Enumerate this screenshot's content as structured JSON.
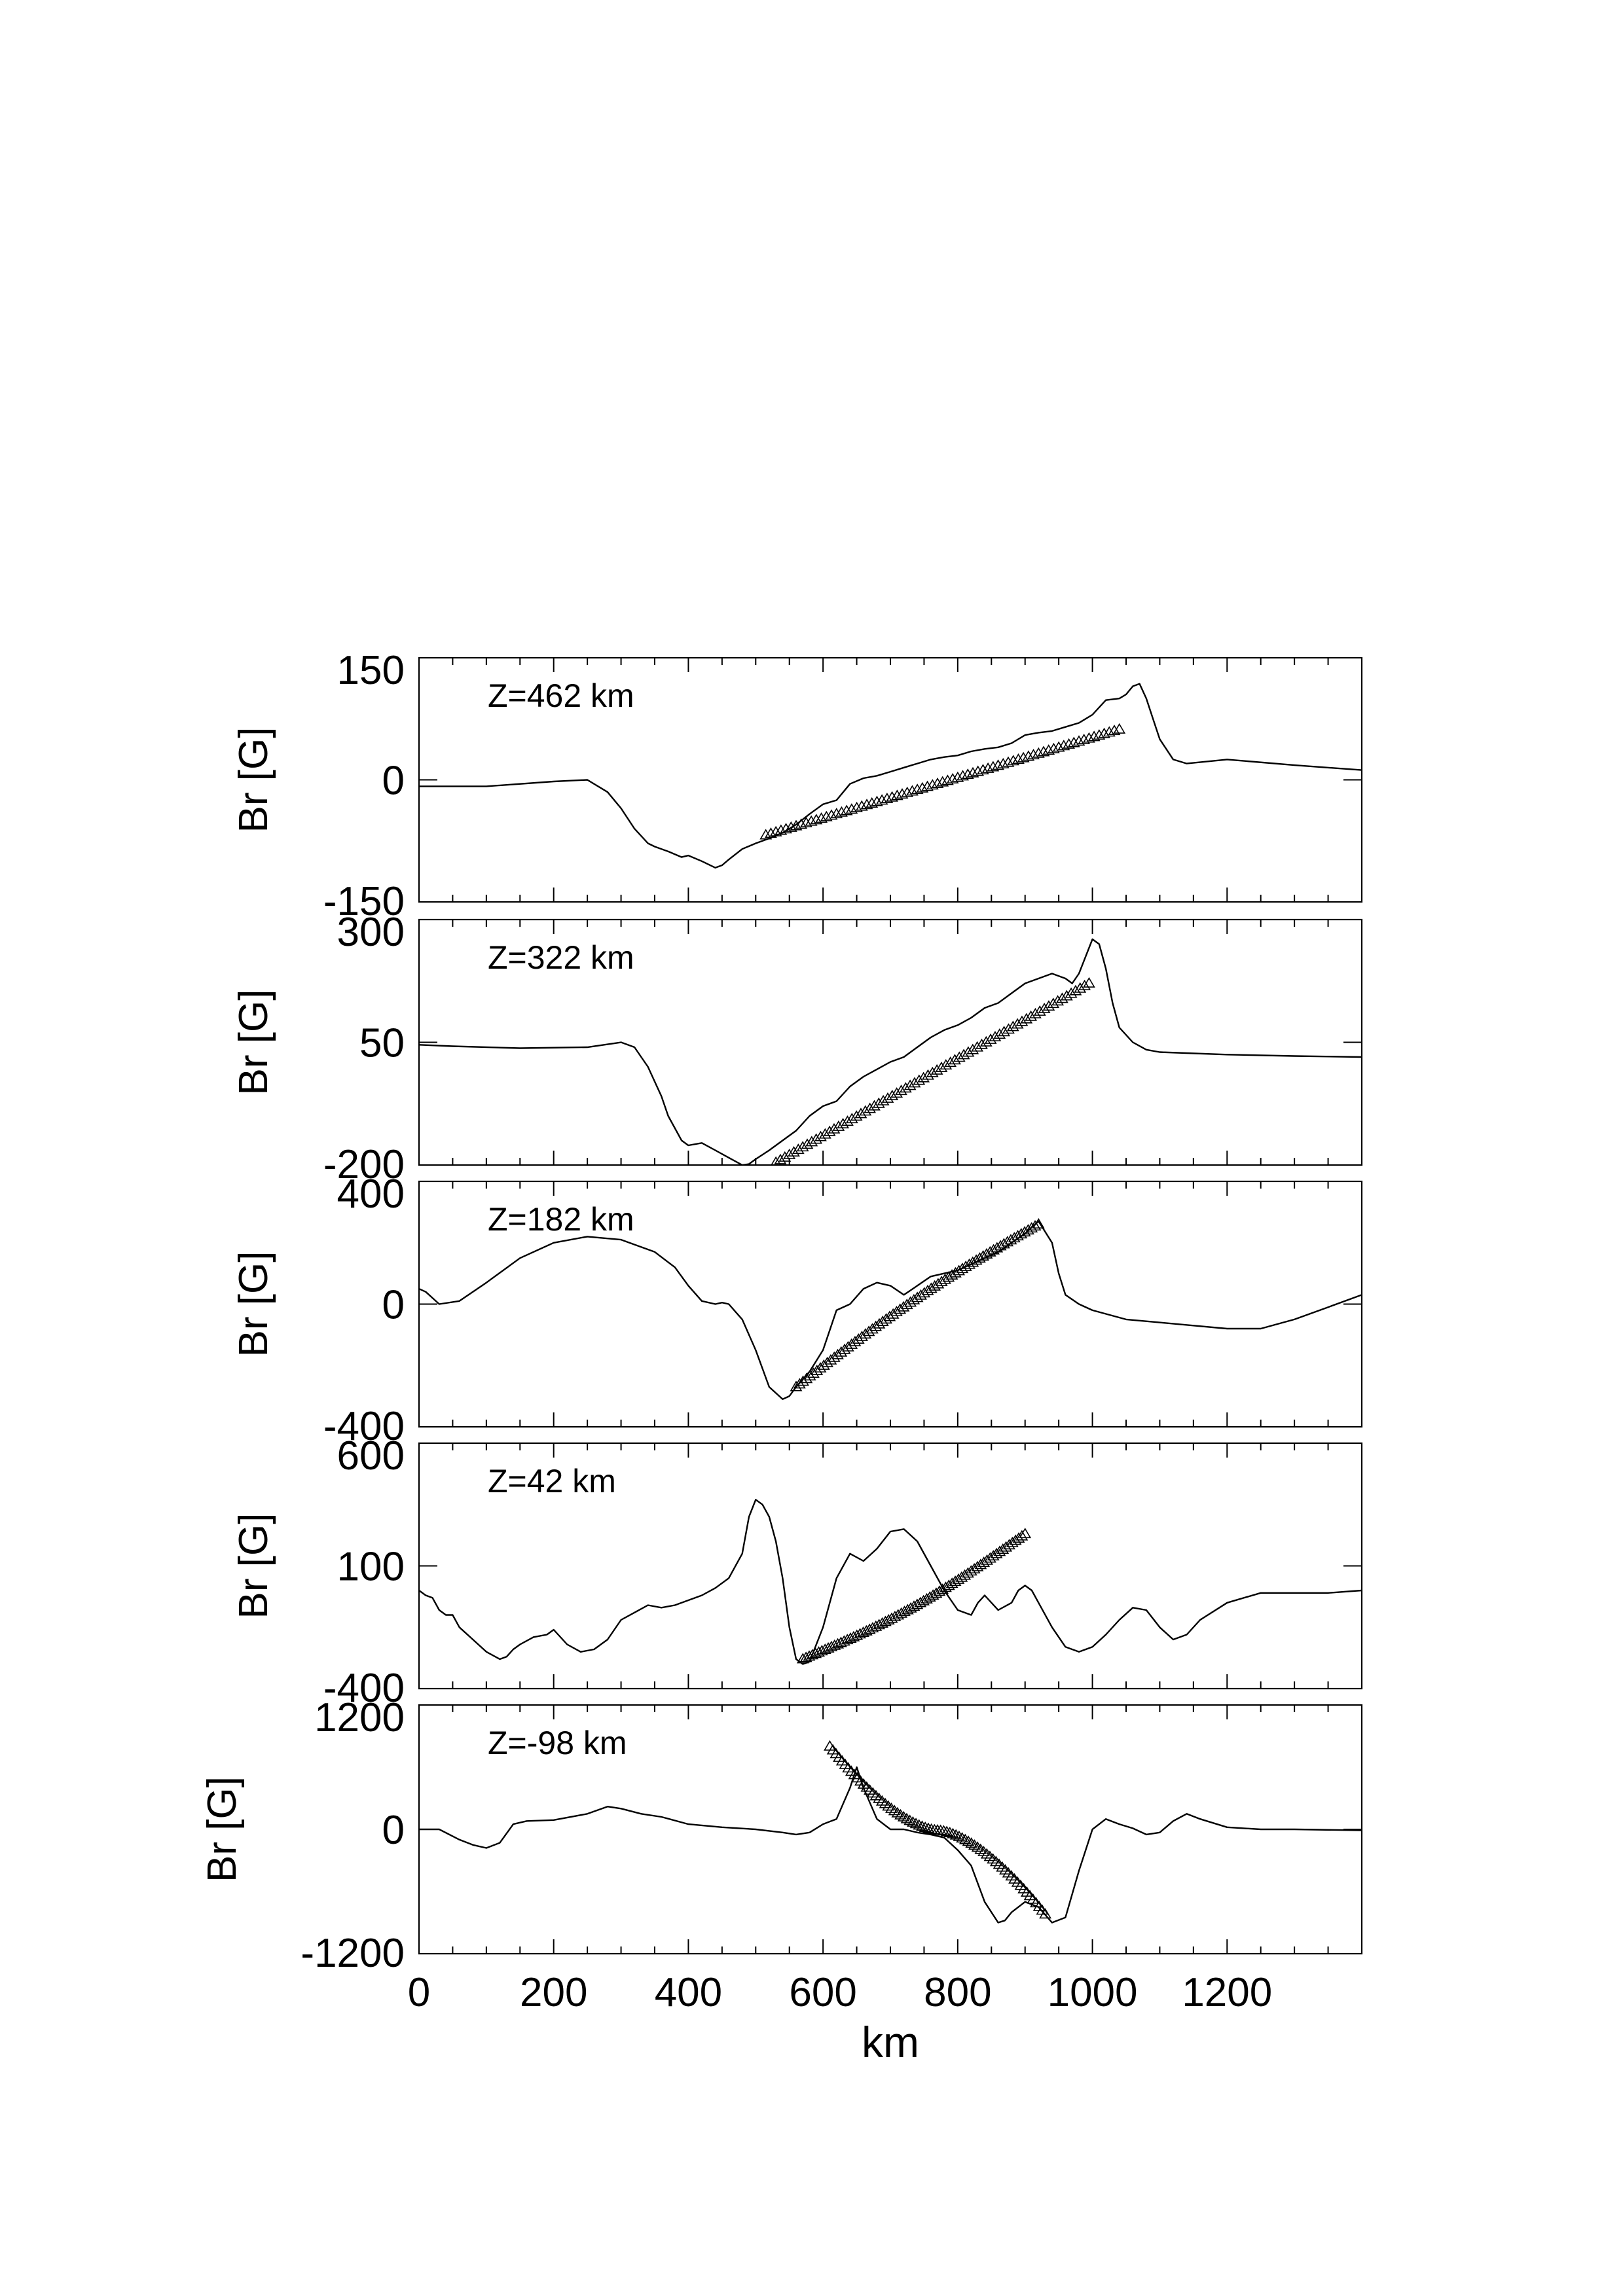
{
  "chart_data": [
    {
      "type": "line",
      "annotation": "Z=462 km",
      "ylabel": "Br [G]",
      "xlabel": "",
      "xlim": [
        0,
        1400
      ],
      "ylim": [
        -150,
        150
      ],
      "yticks": [
        "150",
        "0",
        "-150"
      ],
      "yticks_values": [
        150,
        0,
        -150
      ],
      "series": [
        {
          "style": "line",
          "x": [
            0,
            100,
            200,
            250,
            280,
            300,
            320,
            340,
            350,
            370,
            390,
            400,
            420,
            440,
            450,
            460,
            480,
            500,
            520,
            540,
            560,
            580,
            600,
            620,
            640,
            660,
            680,
            700,
            720,
            740,
            760,
            780,
            800,
            820,
            840,
            860,
            880,
            900,
            920,
            940,
            960,
            980,
            1000,
            1020,
            1040,
            1050,
            1060,
            1070,
            1080,
            1090,
            1100,
            1120,
            1140,
            1200,
            1300,
            1400
          ],
          "y": [
            -8,
            -8,
            -2,
            0,
            -15,
            -35,
            -60,
            -78,
            -82,
            -88,
            -95,
            -93,
            -100,
            -108,
            -105,
            -98,
            -85,
            -78,
            -72,
            -65,
            -55,
            -42,
            -30,
            -25,
            -5,
            2,
            5,
            10,
            15,
            20,
            25,
            28,
            30,
            35,
            38,
            40,
            45,
            55,
            58,
            60,
            65,
            70,
            80,
            98,
            100,
            105,
            115,
            118,
            100,
            75,
            50,
            25,
            20,
            25,
            18,
            12
          ]
        },
        {
          "style": "markers",
          "marker": "triangle",
          "x": [
            515,
            1040
          ],
          "y": [
            -68,
            62
          ]
        }
      ]
    },
    {
      "type": "line",
      "annotation": "Z=322 km",
      "ylabel": "Br [G]",
      "xlabel": "",
      "xlim": [
        0,
        1400
      ],
      "ylim": [
        -200,
        300
      ],
      "yticks": [
        "300",
        "50",
        "-200"
      ],
      "yticks_values": [
        300,
        50,
        -200
      ],
      "series": [
        {
          "style": "line",
          "x": [
            0,
            50,
            150,
            250,
            300,
            320,
            340,
            360,
            370,
            390,
            400,
            420,
            440,
            460,
            480,
            490,
            500,
            520,
            540,
            560,
            580,
            600,
            620,
            640,
            660,
            680,
            700,
            720,
            740,
            760,
            780,
            800,
            820,
            840,
            860,
            880,
            900,
            920,
            940,
            960,
            970,
            980,
            1000,
            1010,
            1020,
            1030,
            1040,
            1060,
            1080,
            1100,
            1200,
            1300,
            1400
          ],
          "y": [
            45,
            42,
            38,
            40,
            50,
            40,
            0,
            -60,
            -100,
            -150,
            -160,
            -155,
            -170,
            -185,
            -200,
            -198,
            -188,
            -170,
            -150,
            -130,
            -100,
            -80,
            -70,
            -40,
            -20,
            -5,
            10,
            20,
            40,
            60,
            75,
            85,
            100,
            120,
            130,
            150,
            170,
            180,
            190,
            180,
            170,
            190,
            260,
            250,
            200,
            130,
            80,
            50,
            35,
            30,
            25,
            22,
            20
          ]
        },
        {
          "style": "markers",
          "marker": "triangle",
          "x": [
            530,
            995
          ],
          "y": [
            -195,
            170
          ]
        }
      ]
    },
    {
      "type": "line",
      "annotation": "Z=182 km",
      "ylabel": "Br [G]",
      "xlabel": "",
      "xlim": [
        0,
        1400
      ],
      "ylim": [
        -400,
        400
      ],
      "yticks": [
        "400",
        "0",
        "-400"
      ],
      "yticks_values": [
        400,
        0,
        -400
      ],
      "series": [
        {
          "style": "line",
          "x": [
            0,
            10,
            20,
            30,
            60,
            100,
            150,
            200,
            250,
            300,
            350,
            380,
            400,
            420,
            440,
            450,
            460,
            480,
            500,
            520,
            540,
            550,
            560,
            580,
            600,
            620,
            640,
            660,
            680,
            700,
            720,
            740,
            760,
            780,
            800,
            820,
            840,
            860,
            880,
            900,
            910,
            920,
            940,
            950,
            960,
            980,
            1000,
            1050,
            1100,
            1150,
            1200,
            1250,
            1300,
            1350,
            1400
          ],
          "y": [
            50,
            40,
            20,
            0,
            10,
            70,
            150,
            200,
            220,
            210,
            170,
            120,
            60,
            10,
            0,
            5,
            0,
            -50,
            -150,
            -270,
            -310,
            -300,
            -270,
            -220,
            -150,
            -20,
            0,
            50,
            70,
            60,
            30,
            60,
            90,
            100,
            110,
            130,
            150,
            170,
            200,
            230,
            250,
            270,
            200,
            100,
            30,
            0,
            -20,
            -50,
            -60,
            -70,
            -80,
            -80,
            -50,
            -10,
            30
          ]
        },
        {
          "style": "markers",
          "marker": "triangle",
          "x": [
            560,
            920
          ],
          "y": [
            -270,
            260
          ]
        }
      ]
    },
    {
      "type": "line",
      "annotation": "Z=42 km",
      "ylabel": "Br [G]",
      "xlabel": "",
      "xlim": [
        0,
        1400
      ],
      "ylim": [
        -400,
        600
      ],
      "yticks": [
        "600",
        "100",
        "-400"
      ],
      "yticks_values": [
        600,
        100,
        -400
      ],
      "series": [
        {
          "style": "line",
          "x": [
            0,
            10,
            20,
            30,
            40,
            50,
            60,
            80,
            100,
            120,
            130,
            140,
            150,
            170,
            190,
            200,
            220,
            240,
            260,
            280,
            300,
            320,
            340,
            360,
            380,
            400,
            420,
            440,
            460,
            480,
            490,
            500,
            510,
            520,
            530,
            540,
            550,
            560,
            570,
            580,
            600,
            620,
            640,
            660,
            680,
            700,
            720,
            740,
            760,
            780,
            800,
            820,
            830,
            840,
            860,
            880,
            890,
            900,
            910,
            920,
            940,
            960,
            980,
            1000,
            1020,
            1040,
            1060,
            1080,
            1100,
            1120,
            1140,
            1160,
            1200,
            1250,
            1300,
            1350,
            1400
          ],
          "y": [
            0,
            -20,
            -30,
            -80,
            -100,
            -100,
            -150,
            -200,
            -250,
            -280,
            -270,
            -240,
            -220,
            -190,
            -180,
            -160,
            -220,
            -250,
            -240,
            -200,
            -120,
            -90,
            -60,
            -70,
            -60,
            -40,
            -20,
            10,
            50,
            150,
            300,
            370,
            350,
            300,
            200,
            50,
            -150,
            -280,
            -300,
            -290,
            -150,
            50,
            150,
            120,
            170,
            240,
            250,
            200,
            100,
            0,
            -80,
            -100,
            -50,
            -20,
            -80,
            -50,
            0,
            20,
            0,
            -50,
            -150,
            -230,
            -250,
            -230,
            -180,
            -120,
            -70,
            -80,
            -150,
            -200,
            -180,
            -120,
            -50,
            -10,
            -10,
            -10,
            0
          ]
        },
        {
          "style": "markers",
          "marker": "triangle",
          "x": [
            570,
            900
          ],
          "y": [
            -280,
            230
          ]
        }
      ]
    },
    {
      "type": "line",
      "annotation": "Z=-98 km",
      "ylabel": "Br [G]",
      "xlabel": "km",
      "xlim": [
        0,
        1400
      ],
      "ylim": [
        -1200,
        1200
      ],
      "xticks": [
        "0",
        "200",
        "400",
        "600",
        "800",
        "1000",
        "1200"
      ],
      "xticks_values": [
        0,
        200,
        400,
        600,
        800,
        1000,
        1200
      ],
      "yticks": [
        "1200",
        "0",
        "-1200"
      ],
      "yticks_values": [
        1200,
        0,
        -1200
      ],
      "series": [
        {
          "style": "line",
          "x": [
            0,
            30,
            60,
            80,
            100,
            120,
            140,
            160,
            200,
            250,
            280,
            300,
            330,
            360,
            400,
            450,
            500,
            540,
            560,
            580,
            600,
            620,
            640,
            650,
            660,
            680,
            700,
            720,
            740,
            760,
            780,
            800,
            820,
            840,
            860,
            870,
            880,
            900,
            920,
            940,
            960,
            980,
            1000,
            1020,
            1040,
            1060,
            1080,
            1100,
            1120,
            1140,
            1160,
            1200,
            1250,
            1300,
            1400
          ],
          "y": [
            0,
            0,
            -100,
            -150,
            -180,
            -130,
            50,
            80,
            90,
            150,
            220,
            200,
            150,
            120,
            50,
            20,
            0,
            -30,
            -50,
            -30,
            50,
            100,
            400,
            600,
            400,
            100,
            0,
            0,
            -30,
            -50,
            -80,
            -200,
            -350,
            -700,
            -900,
            -880,
            -800,
            -700,
            -750,
            -900,
            -850,
            -400,
            0,
            100,
            50,
            10,
            -50,
            -30,
            80,
            150,
            100,
            20,
            0,
            0,
            -10
          ]
        },
        {
          "style": "markers",
          "marker": "triangle",
          "x": [
            610,
            930
          ],
          "y": [
            800,
            -820
          ]
        }
      ]
    }
  ]
}
